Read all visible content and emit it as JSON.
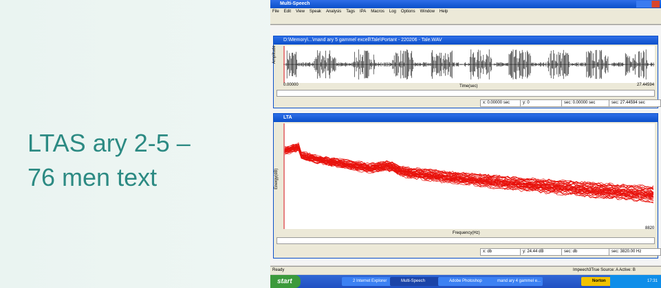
{
  "slide": {
    "title_lines": [
      "LTAS ary 2-5 –",
      "76 men text"
    ]
  },
  "app": {
    "title": "Multi-Speech",
    "menu": [
      "File",
      "Edit",
      "View",
      "Speak",
      "Analysis",
      "Tags",
      "IPA",
      "Macros",
      "Log",
      "Options",
      "Window",
      "Help"
    ],
    "wave_window": {
      "title": "D:\\Memory\\...\\mand ary 5 gammel excell\\Tale\\Portant - 220206 - Tale.WAV",
      "y_label": "Amplitude",
      "x_label": "Time(sec)",
      "x_start": "0.00000",
      "x_end": "27.44594",
      "status": [
        "x: 0.00000 sec",
        "y: 0",
        "sec: 0.00000 sec",
        "sec: 27.44594 sec"
      ]
    },
    "lta_window": {
      "title": "LTA",
      "y_label": "Energy(dB)",
      "x_label": "Frequency(Hz)",
      "x_end": "8820",
      "status": [
        "x: db",
        "y: 24.44 dB",
        "sec: db",
        "sec: 3820.00 Hz"
      ]
    },
    "status_bar": {
      "left": "Ready",
      "right": "Impeech3True Source: A  Active: B"
    },
    "taskbar": {
      "start": "start",
      "items": [
        "2 Internet Explorer",
        "Multi-Speech",
        "Adobe Photoshop",
        "mand ary 4 gammel e..."
      ],
      "norton": "Norton",
      "clock": "17:31"
    }
  }
}
